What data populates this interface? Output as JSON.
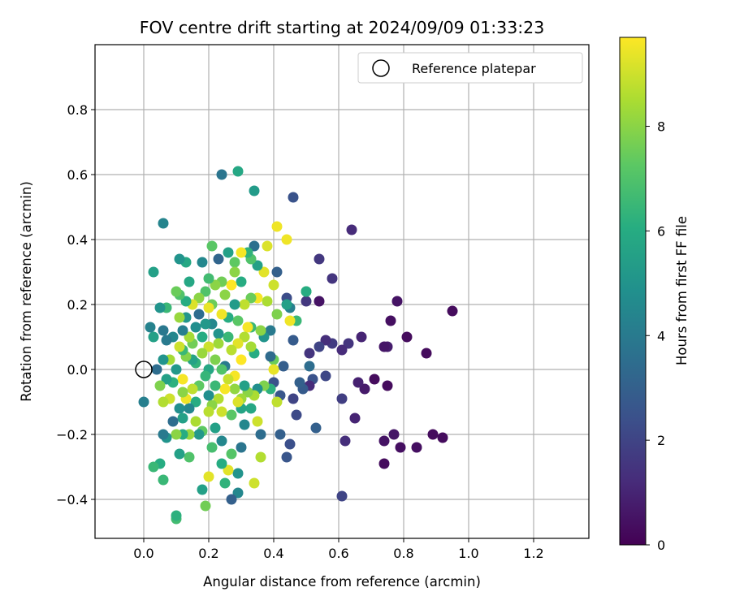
{
  "chart_data": {
    "type": "scatter",
    "title": "FOV centre drift starting at 2024/09/09 01:33:23",
    "xlabel": "Angular distance from reference (arcmin)",
    "ylabel": "Rotation from reference (arcmin)",
    "xlim": [
      -0.15,
      1.37
    ],
    "ylim": [
      -0.52,
      1.0
    ],
    "x_ticks": [
      0.0,
      0.2,
      0.4,
      0.6,
      0.8,
      1.0,
      1.2
    ],
    "y_ticks": [
      -0.4,
      -0.2,
      0.0,
      0.2,
      0.4,
      0.6,
      0.8
    ],
    "x_tick_labels": [
      "0.0",
      "0.2",
      "0.4",
      "0.6",
      "0.8",
      "1.0",
      "1.2"
    ],
    "y_tick_labels": [
      "−0.4",
      "−0.2",
      "0.0",
      "0.2",
      "0.4",
      "0.6",
      "0.8"
    ],
    "grid": true,
    "legend": {
      "placement": "top-right",
      "entries": [
        "Reference platepar"
      ]
    },
    "reference_point": {
      "x": 0.0,
      "y": 0.0
    },
    "colorbar": {
      "label": "Hours from first FF file",
      "range": [
        0,
        9.7
      ],
      "ticks": [
        0,
        2,
        4,
        6,
        8
      ],
      "tick_labels": [
        "0",
        "2",
        "4",
        "6",
        "8"
      ],
      "colormap": "viridis"
    },
    "series": [
      {
        "values_are": "[x, y, hours]",
        "points": [
          [
            0.95,
            0.18,
            0.3
          ],
          [
            0.92,
            -0.21,
            0.3
          ],
          [
            0.89,
            -0.2,
            0.3
          ],
          [
            0.87,
            0.05,
            0.3
          ],
          [
            0.84,
            -0.24,
            0.4
          ],
          [
            0.81,
            0.1,
            0.3
          ],
          [
            0.79,
            -0.24,
            0.4
          ],
          [
            0.78,
            0.21,
            0.5
          ],
          [
            0.77,
            -0.2,
            0.6
          ],
          [
            0.76,
            0.15,
            0.4
          ],
          [
            0.75,
            -0.05,
            0.3
          ],
          [
            0.75,
            0.07,
            0.8
          ],
          [
            0.74,
            -0.22,
            0.5
          ],
          [
            0.74,
            0.07,
            0.6
          ],
          [
            0.74,
            -0.29,
            0.3
          ],
          [
            0.71,
            -0.03,
            0.3
          ],
          [
            0.68,
            -0.06,
            0.7
          ],
          [
            0.67,
            0.1,
            1.0
          ],
          [
            0.66,
            -0.04,
            0.9
          ],
          [
            0.65,
            -0.15,
            1.0
          ],
          [
            0.64,
            0.43,
            1.2
          ],
          [
            0.63,
            0.08,
            1.5
          ],
          [
            0.62,
            -0.22,
            1.3
          ],
          [
            0.61,
            -0.09,
            1.8
          ],
          [
            0.61,
            0.06,
            1.2
          ],
          [
            0.61,
            -0.39,
            2.0
          ],
          [
            0.58,
            0.28,
            1.5
          ],
          [
            0.58,
            0.08,
            1.7
          ],
          [
            0.56,
            0.09,
            1.3
          ],
          [
            0.56,
            -0.02,
            2.1
          ],
          [
            0.54,
            0.34,
            1.6
          ],
          [
            0.54,
            0.21,
            0.5
          ],
          [
            0.54,
            0.07,
            2.0
          ],
          [
            0.53,
            -0.18,
            3.0
          ],
          [
            0.52,
            -0.03,
            2.5
          ],
          [
            0.51,
            0.05,
            1.5
          ],
          [
            0.51,
            -0.05,
            1.2
          ],
          [
            0.51,
            0.01,
            3.5
          ],
          [
            0.5,
            0.21,
            1.6
          ],
          [
            0.5,
            0.24,
            7.5
          ],
          [
            0.5,
            0.24,
            6.0
          ],
          [
            0.49,
            -0.06,
            2.8
          ],
          [
            0.48,
            -0.04,
            3.0
          ],
          [
            0.47,
            -0.14,
            2.2
          ],
          [
            0.47,
            0.15,
            6.5
          ],
          [
            0.46,
            0.53,
            2.5
          ],
          [
            0.46,
            0.09,
            2.8
          ],
          [
            0.46,
            -0.09,
            2.0
          ],
          [
            0.45,
            -0.23,
            2.4
          ],
          [
            0.45,
            0.19,
            4.2
          ],
          [
            0.45,
            0.15,
            9.5
          ],
          [
            0.44,
            -0.27,
            2.6
          ],
          [
            0.44,
            0.22,
            2.3
          ],
          [
            0.44,
            0.2,
            5.5
          ],
          [
            0.44,
            0.4,
            9.5
          ],
          [
            0.43,
            0.01,
            2.9
          ],
          [
            0.42,
            -0.2,
            3.0
          ],
          [
            0.42,
            -0.08,
            2.6
          ],
          [
            0.41,
            0.44,
            9.5
          ],
          [
            0.41,
            0.3,
            3.0
          ],
          [
            0.41,
            0.17,
            7.8
          ],
          [
            0.41,
            -0.1,
            8.8
          ],
          [
            0.4,
            -0.04,
            2.5
          ],
          [
            0.4,
            0.03,
            7.5
          ],
          [
            0.4,
            0.26,
            9.0
          ],
          [
            0.4,
            0.0,
            9.4
          ],
          [
            0.39,
            -0.06,
            6.2
          ],
          [
            0.39,
            0.04,
            3.4
          ],
          [
            0.39,
            0.12,
            4.0
          ],
          [
            0.38,
            0.38,
            9.2
          ],
          [
            0.38,
            0.21,
            8.5
          ],
          [
            0.37,
            0.3,
            9.3
          ],
          [
            0.37,
            0.1,
            5.0
          ],
          [
            0.37,
            -0.05,
            7.8
          ],
          [
            0.36,
            -0.2,
            3.5
          ],
          [
            0.36,
            -0.27,
            8.6
          ],
          [
            0.36,
            0.12,
            8.0
          ],
          [
            0.35,
            0.32,
            5.5
          ],
          [
            0.35,
            -0.16,
            9.0
          ],
          [
            0.35,
            0.22,
            9.6
          ],
          [
            0.35,
            -0.06,
            4.8
          ],
          [
            0.34,
            0.05,
            6.0
          ],
          [
            0.34,
            -0.35,
            9.0
          ],
          [
            0.34,
            0.38,
            3.6
          ],
          [
            0.34,
            0.55,
            5.3
          ],
          [
            0.34,
            -0.08,
            8.5
          ],
          [
            0.33,
            0.22,
            7.5
          ],
          [
            0.33,
            -0.12,
            5.8
          ],
          [
            0.33,
            0.07,
            8.4
          ],
          [
            0.33,
            0.13,
            6.5
          ],
          [
            0.33,
            0.34,
            7.0
          ],
          [
            0.32,
            -0.07,
            8.0
          ],
          [
            0.32,
            0.13,
            9.6
          ],
          [
            0.32,
            0.36,
            6.3
          ],
          [
            0.31,
            -0.17,
            4.5
          ],
          [
            0.31,
            -0.05,
            5.5
          ],
          [
            0.31,
            0.2,
            8.8
          ],
          [
            0.31,
            0.1,
            8.6
          ],
          [
            0.3,
            0.36,
            9.6
          ],
          [
            0.3,
            0.27,
            6.0
          ],
          [
            0.3,
            -0.24,
            3.8
          ],
          [
            0.3,
            0.03,
            9.7
          ],
          [
            0.3,
            -0.09,
            8.3
          ],
          [
            0.3,
            -0.12,
            5.7
          ],
          [
            0.29,
            -0.32,
            5.0
          ],
          [
            0.29,
            0.61,
            5.8
          ],
          [
            0.29,
            0.15,
            7.2
          ],
          [
            0.29,
            0.08,
            9.3
          ],
          [
            0.29,
            -0.1,
            9.2
          ],
          [
            0.29,
            -0.38,
            4.5
          ],
          [
            0.28,
            0.33,
            7.3
          ],
          [
            0.28,
            -0.02,
            9.6
          ],
          [
            0.28,
            0.2,
            5.3
          ],
          [
            0.28,
            -0.06,
            8.1
          ],
          [
            0.28,
            0.3,
            8.0
          ],
          [
            0.27,
            -0.14,
            7.2
          ],
          [
            0.27,
            0.06,
            8.7
          ],
          [
            0.27,
            0.26,
            9.7
          ],
          [
            0.27,
            -0.4,
            3.0
          ],
          [
            0.27,
            -0.26,
            7.1
          ],
          [
            0.26,
            0.1,
            6.5
          ],
          [
            0.26,
            0.36,
            5.5
          ],
          [
            0.26,
            -0.03,
            8.9
          ],
          [
            0.26,
            0.16,
            6.0
          ],
          [
            0.26,
            -0.31,
            9.3
          ],
          [
            0.25,
            0.23,
            8.0
          ],
          [
            0.25,
            -0.06,
            9.6
          ],
          [
            0.25,
            0.01,
            4.0
          ],
          [
            0.25,
            -0.35,
            6.3
          ],
          [
            0.24,
            0.6,
            3.8
          ],
          [
            0.24,
            -0.22,
            4.5
          ],
          [
            0.24,
            0.27,
            7.6
          ],
          [
            0.24,
            -0.13,
            9.0
          ],
          [
            0.24,
            0.17,
            9.5
          ],
          [
            0.24,
            0.0,
            7.0
          ],
          [
            0.24,
            -0.29,
            6.0
          ],
          [
            0.23,
            0.11,
            5.0
          ],
          [
            0.23,
            -0.09,
            8.6
          ],
          [
            0.23,
            0.34,
            3.2
          ],
          [
            0.23,
            0.08,
            8.3
          ],
          [
            0.22,
            0.26,
            8.0
          ],
          [
            0.22,
            -0.18,
            5.5
          ],
          [
            0.22,
            0.03,
            7.8
          ],
          [
            0.22,
            -0.05,
            6.5
          ],
          [
            0.21,
            0.14,
            4.5
          ],
          [
            0.21,
            -0.11,
            8.0
          ],
          [
            0.21,
            0.2,
            7.5
          ],
          [
            0.21,
            -0.24,
            6.8
          ],
          [
            0.21,
            0.38,
            7.2
          ],
          [
            0.2,
            0.07,
            9.0
          ],
          [
            0.2,
            0.0,
            5.8
          ],
          [
            0.2,
            -0.33,
            9.3
          ],
          [
            0.2,
            0.28,
            6.7
          ],
          [
            0.2,
            -0.13,
            8.7
          ],
          [
            0.2,
            0.19,
            9.4
          ],
          [
            0.2,
            -0.08,
            4.8
          ],
          [
            0.19,
            0.14,
            5.2
          ],
          [
            0.19,
            -0.42,
            7.6
          ],
          [
            0.19,
            -0.02,
            6.4
          ],
          [
            0.19,
            0.24,
            7.0
          ],
          [
            0.18,
            -0.19,
            7.3
          ],
          [
            0.18,
            0.05,
            8.2
          ],
          [
            0.18,
            0.33,
            4.5
          ],
          [
            0.18,
            -0.37,
            5.5
          ],
          [
            0.18,
            0.1,
            6.0
          ],
          [
            0.17,
            0.22,
            8.0
          ],
          [
            0.17,
            -0.05,
            7.3
          ],
          [
            0.17,
            -0.2,
            5.2
          ],
          [
            0.17,
            0.17,
            3.5
          ],
          [
            0.16,
            0.02,
            6.3
          ],
          [
            0.16,
            -0.16,
            8.5
          ],
          [
            0.16,
            0.13,
            4.8
          ],
          [
            0.16,
            -0.1,
            6.0
          ],
          [
            0.15,
            0.2,
            9.2
          ],
          [
            0.15,
            -0.06,
            8.8
          ],
          [
            0.15,
            0.03,
            5.6
          ],
          [
            0.15,
            0.08,
            7.6
          ],
          [
            0.14,
            -0.27,
            7.0
          ],
          [
            0.14,
            0.27,
            5.8
          ],
          [
            0.14,
            -0.2,
            8.2
          ],
          [
            0.14,
            0.1,
            8.4
          ],
          [
            0.14,
            -0.12,
            4.5
          ],
          [
            0.13,
            0.16,
            5.1
          ],
          [
            0.13,
            -0.09,
            9.5
          ],
          [
            0.13,
            0.04,
            7.9
          ],
          [
            0.13,
            0.21,
            6.0
          ],
          [
            0.13,
            0.33,
            5.8
          ],
          [
            0.12,
            -0.07,
            8.0
          ],
          [
            0.12,
            -0.2,
            6.0
          ],
          [
            0.12,
            0.12,
            4.2
          ],
          [
            0.12,
            -0.03,
            9.6
          ],
          [
            0.12,
            0.06,
            6.5
          ],
          [
            0.12,
            -0.15,
            5.5
          ],
          [
            0.11,
            0.23,
            7.0
          ],
          [
            0.11,
            0.34,
            5.0
          ],
          [
            0.11,
            0.16,
            8.2
          ],
          [
            0.11,
            -0.26,
            5.5
          ],
          [
            0.11,
            0.07,
            9.0
          ],
          [
            0.11,
            -0.12,
            4.8
          ],
          [
            0.1,
            -0.46,
            6.7
          ],
          [
            0.1,
            0.0,
            5.2
          ],
          [
            0.1,
            0.24,
            7.5
          ],
          [
            0.1,
            -0.45,
            6.2
          ],
          [
            0.1,
            -0.2,
            8.0
          ],
          [
            0.09,
            0.1,
            4.5
          ],
          [
            0.09,
            -0.04,
            6.2
          ],
          [
            0.09,
            -0.16,
            3.5
          ],
          [
            0.08,
            0.03,
            8.4
          ],
          [
            0.08,
            -0.09,
            9.0
          ],
          [
            0.07,
            0.19,
            6.5
          ],
          [
            0.07,
            -0.21,
            5.0
          ],
          [
            0.07,
            -0.03,
            5.5
          ],
          [
            0.07,
            0.09,
            4.0
          ],
          [
            0.06,
            -0.2,
            4.0
          ],
          [
            0.06,
            0.12,
            3.9
          ],
          [
            0.06,
            -0.1,
            8.6
          ],
          [
            0.06,
            0.03,
            5.0
          ],
          [
            0.06,
            0.45,
            4.4
          ],
          [
            0.06,
            -0.34,
            6.5
          ],
          [
            0.05,
            -0.29,
            6.0
          ],
          [
            0.05,
            -0.05,
            7.8
          ],
          [
            0.05,
            0.19,
            5.0
          ],
          [
            0.04,
            0.0,
            3.5
          ],
          [
            0.03,
            0.1,
            5.5
          ],
          [
            0.03,
            -0.3,
            6.5
          ],
          [
            0.03,
            0.3,
            5.5
          ],
          [
            0.02,
            0.13,
            4.3
          ],
          [
            0.0,
            -0.1,
            4.2
          ]
        ]
      }
    ]
  }
}
